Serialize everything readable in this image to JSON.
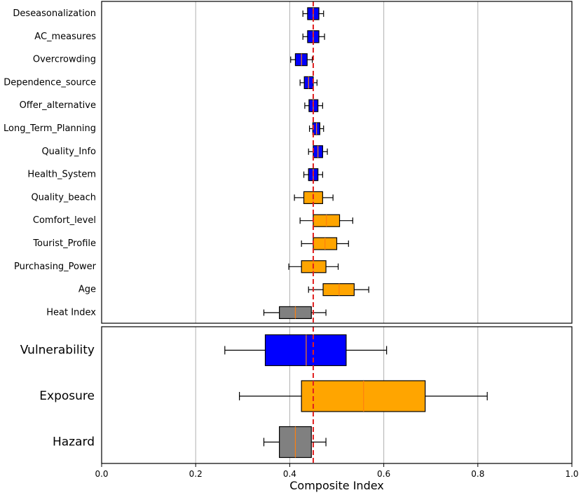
{
  "chart_data": {
    "type": "boxplot",
    "xlabel": "Composite Index",
    "xlim": [
      0.0,
      1.0
    ],
    "xticks": [
      "0.0",
      "0.2",
      "0.4",
      "0.6",
      "0.8",
      "1.0"
    ],
    "xtick_values": [
      0.0,
      0.2,
      0.4,
      0.6,
      0.8,
      1.0
    ],
    "grid": "vertical",
    "reference_line": {
      "value": 0.45,
      "color": "#e02020",
      "style": "dashed"
    },
    "colors": {
      "blue": "#0000ff",
      "orange": "#ffa500",
      "gray": "#808080",
      "median": "#ff7f0e"
    },
    "panels": [
      {
        "name": "indicators",
        "items": [
          {
            "label": "Deseasonalization",
            "color": "blue",
            "whisker_low": 0.428,
            "q1": 0.438,
            "median": 0.45,
            "q3": 0.462,
            "whisker_high": 0.472
          },
          {
            "label": "AC_measures",
            "color": "blue",
            "whisker_low": 0.428,
            "q1": 0.438,
            "median": 0.45,
            "q3": 0.462,
            "whisker_high": 0.474
          },
          {
            "label": "Overcrowding",
            "color": "blue",
            "whisker_low": 0.402,
            "q1": 0.412,
            "median": 0.425,
            "q3": 0.437,
            "whisker_high": 0.448
          },
          {
            "label": "Dependence_source",
            "color": "blue",
            "whisker_low": 0.422,
            "q1": 0.431,
            "median": 0.44,
            "q3": 0.45,
            "whisker_high": 0.458
          },
          {
            "label": "Offer_alternative",
            "color": "blue",
            "whisker_low": 0.432,
            "q1": 0.441,
            "median": 0.45,
            "q3": 0.46,
            "whisker_high": 0.47
          },
          {
            "label": "Long_Term_Planning",
            "color": "blue",
            "whisker_low": 0.442,
            "q1": 0.449,
            "median": 0.457,
            "q3": 0.464,
            "whisker_high": 0.472
          },
          {
            "label": "Quality_Info",
            "color": "blue",
            "whisker_low": 0.44,
            "q1": 0.45,
            "median": 0.46,
            "q3": 0.47,
            "whisker_high": 0.48
          },
          {
            "label": "Health_System",
            "color": "blue",
            "whisker_low": 0.43,
            "q1": 0.44,
            "median": 0.45,
            "q3": 0.46,
            "whisker_high": 0.47
          },
          {
            "label": "Quality_beach",
            "color": "orange",
            "whisker_low": 0.41,
            "q1": 0.43,
            "median": 0.45,
            "q3": 0.47,
            "whisker_high": 0.492
          },
          {
            "label": "Comfort_level",
            "color": "orange",
            "whisker_low": 0.422,
            "q1": 0.45,
            "median": 0.478,
            "q3": 0.506,
            "whisker_high": 0.534
          },
          {
            "label": "Tourist_Profile",
            "color": "orange",
            "whisker_low": 0.425,
            "q1": 0.45,
            "median": 0.475,
            "q3": 0.5,
            "whisker_high": 0.525
          },
          {
            "label": "Purchasing_Power",
            "color": "orange",
            "whisker_low": 0.398,
            "q1": 0.425,
            "median": 0.45,
            "q3": 0.477,
            "whisker_high": 0.503
          },
          {
            "label": "Age",
            "color": "orange",
            "whisker_low": 0.44,
            "q1": 0.471,
            "median": 0.505,
            "q3": 0.537,
            "whisker_high": 0.568
          },
          {
            "label": "Heat Index",
            "color": "gray",
            "whisker_low": 0.345,
            "q1": 0.378,
            "median": 0.412,
            "q3": 0.446,
            "whisker_high": 0.477
          }
        ]
      },
      {
        "name": "components",
        "items": [
          {
            "label": "Vulnerability",
            "color": "blue",
            "whisker_low": 0.262,
            "q1": 0.348,
            "median": 0.435,
            "q3": 0.52,
            "whisker_high": 0.606
          },
          {
            "label": "Exposure",
            "color": "orange",
            "whisker_low": 0.293,
            "q1": 0.425,
            "median": 0.557,
            "q3": 0.688,
            "whisker_high": 0.82
          },
          {
            "label": "Hazard",
            "color": "gray",
            "whisker_low": 0.345,
            "q1": 0.378,
            "median": 0.412,
            "q3": 0.446,
            "whisker_high": 0.477
          }
        ]
      }
    ]
  }
}
